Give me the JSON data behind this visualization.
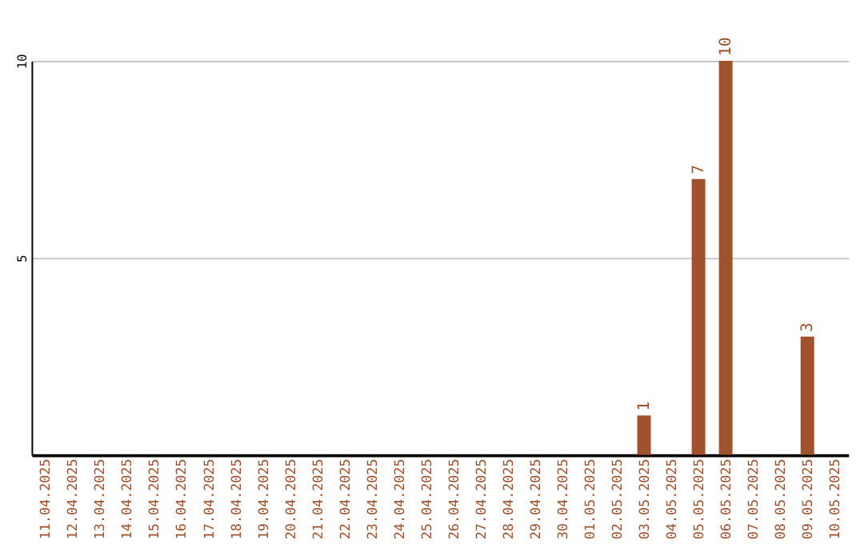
{
  "chart_data": {
    "type": "bar",
    "categories": [
      "11.04.2025",
      "12.04.2025",
      "13.04.2025",
      "14.04.2025",
      "15.04.2025",
      "16.04.2025",
      "17.04.2025",
      "18.04.2025",
      "19.04.2025",
      "20.04.2025",
      "21.04.2025",
      "22.04.2025",
      "23.04.2025",
      "24.04.2025",
      "25.04.2025",
      "26.04.2025",
      "27.04.2025",
      "28.04.2025",
      "29.04.2025",
      "30.04.2025",
      "01.05.2025",
      "02.05.2025",
      "03.05.2025",
      "04.05.2025",
      "05.05.2025",
      "06.05.2025",
      "07.05.2025",
      "08.05.2025",
      "09.05.2025",
      "10.05.2025"
    ],
    "values": [
      null,
      null,
      null,
      null,
      null,
      null,
      null,
      null,
      null,
      null,
      null,
      null,
      null,
      null,
      null,
      null,
      null,
      null,
      null,
      null,
      null,
      null,
      1,
      null,
      7,
      10,
      null,
      null,
      3,
      null
    ],
    "color": "#a0522d",
    "ylim": [
      0,
      10
    ],
    "yticks": [
      5,
      10
    ],
    "grid": "y",
    "data_labels": true
  }
}
